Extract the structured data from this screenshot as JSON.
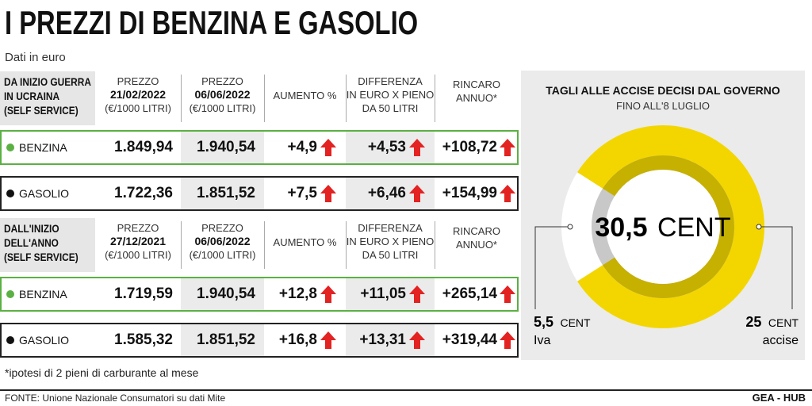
{
  "title": "I PREZZI DI BENZINA E GASOLIO",
  "subtitle": "Dati in euro",
  "colors": {
    "benzina": "#5bb043",
    "gasolio": "#111111",
    "up_arrow": "#e32222",
    "ring_accise": "#f3d600",
    "ring_accise_dark": "#c6b000",
    "ring_iva": "#ffffff",
    "ring_inner": "#c8c8c8"
  },
  "sections": [
    {
      "header": [
        "DA INIZIO GUERRA",
        "IN UCRAINA",
        "(SELF SERVICE)"
      ],
      "columns": [
        {
          "lines": [
            "PREZZO"
          ],
          "bold": "21/02/2022",
          "after": "(€/1000 LITRI)"
        },
        {
          "lines": [
            "PREZZO"
          ],
          "bold": "06/06/2022",
          "after": "(€/1000 LITRI)"
        },
        {
          "lines": [
            "AUMENTO %"
          ],
          "bold": "",
          "after": ""
        },
        {
          "lines": [
            "DIFFERENZA",
            "IN EURO X PIENO",
            "DA 50 LITRI"
          ],
          "bold": "",
          "after": ""
        },
        {
          "lines": [
            "RINCARO",
            "ANNUO*"
          ],
          "bold": "",
          "after": ""
        }
      ],
      "rows": [
        {
          "fuel": "BENZINA",
          "kind": "benzina",
          "price_start": "1.849,94",
          "price_end": "1.940,54",
          "increase_pct": "+4,9",
          "diff_full_tank": "+4,53",
          "annual_increase": "+108,72"
        },
        {
          "fuel": "GASOLIO",
          "kind": "gasolio",
          "price_start": "1.722,36",
          "price_end": "1.851,52",
          "increase_pct": "+7,5",
          "diff_full_tank": "+6,46",
          "annual_increase": "+154,99"
        }
      ]
    },
    {
      "header": [
        "DALL'INIZIO",
        "DELL'ANNO",
        "(SELF SERVICE)"
      ],
      "columns": [
        {
          "lines": [
            "PREZZO"
          ],
          "bold": "27/12/2021",
          "after": "(€/1000 LITRI)"
        },
        {
          "lines": [
            "PREZZO"
          ],
          "bold": "06/06/2022",
          "after": "(€/1000 LITRI)"
        },
        {
          "lines": [
            "AUMENTO %"
          ],
          "bold": "",
          "after": ""
        },
        {
          "lines": [
            "DIFFERENZA",
            "IN EURO X PIENO",
            "DA 50 LITRI"
          ],
          "bold": "",
          "after": ""
        },
        {
          "lines": [
            "RINCARO",
            "ANNUO*"
          ],
          "bold": "",
          "after": ""
        }
      ],
      "rows": [
        {
          "fuel": "BENZINA",
          "kind": "benzina",
          "price_start": "1.719,59",
          "price_end": "1.940,54",
          "increase_pct": "+12,8",
          "diff_full_tank": "+11,05",
          "annual_increase": "+265,14"
        },
        {
          "fuel": "GASOLIO",
          "kind": "gasolio",
          "price_start": "1.585,32",
          "price_end": "1.851,52",
          "increase_pct": "+16,8",
          "diff_full_tank": "+13,31",
          "annual_increase": "+319,44"
        }
      ]
    }
  ],
  "panel": {
    "title": "TAGLI ALLE ACCISE DECISI DAL GOVERNO",
    "subtitle": "FINO ALL'8 LUGLIO",
    "center_value": "30,5",
    "center_unit": "CENT",
    "left_value": "5,5",
    "left_unit": "CENT",
    "left_label": "Iva",
    "right_value": "25",
    "right_unit": "CENT",
    "right_label": "accise"
  },
  "chart_data": {
    "type": "pie",
    "title": "TAGLI ALLE ACCISE DECISI DAL GOVERNO",
    "subtitle": "FINO ALL'8 LUGLIO",
    "total": 30.5,
    "unit": "CENT",
    "slices": [
      {
        "label": "accise",
        "value": 25
      },
      {
        "label": "Iva",
        "value": 5.5
      }
    ]
  },
  "footnote": "*ipotesi di 2 pieni di carburante al mese",
  "source": "FONTE: Unione Nazionale Consumatori su dati Mite",
  "brand": "GEA - HUB"
}
